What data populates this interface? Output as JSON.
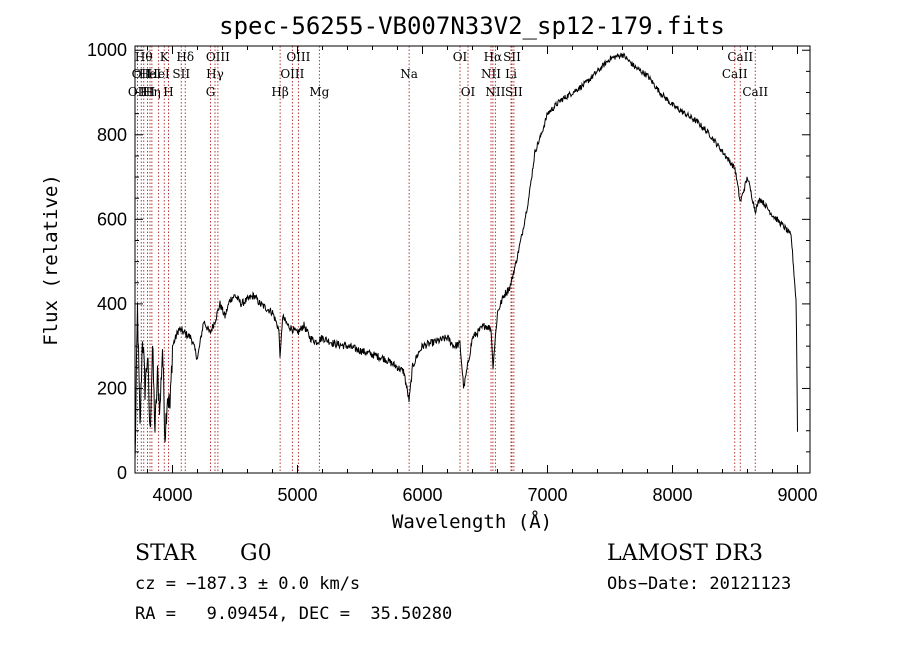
{
  "chart_data": {
    "type": "line",
    "title": "spec-56255-VB007N33V2_sp12-179.fits",
    "xlabel": "Wavelength (Å)",
    "ylabel": "Flux (relative)",
    "xlim": [
      3700,
      9100
    ],
    "ylim": [
      0,
      1010
    ],
    "xticks": [
      {
        "value": 4000,
        "label": "4000"
      },
      {
        "value": 5000,
        "label": "5000"
      },
      {
        "value": 6000,
        "label": "6000"
      },
      {
        "value": 7000,
        "label": "7000"
      },
      {
        "value": 8000,
        "label": "8000"
      },
      {
        "value": 9000,
        "label": "9000"
      }
    ],
    "yticks": [
      {
        "value": 0,
        "label": "0"
      },
      {
        "value": 200,
        "label": "200"
      },
      {
        "value": 400,
        "label": "400"
      },
      {
        "value": 600,
        "label": "600"
      },
      {
        "value": 800,
        "label": "800"
      },
      {
        "value": 1000,
        "label": "1000"
      }
    ],
    "series": [
      {
        "name": "flux",
        "x": [
          3700,
          3720,
          3740,
          3760,
          3780,
          3800,
          3820,
          3840,
          3860,
          3880,
          3900,
          3920,
          3940,
          3960,
          3980,
          4000,
          4050,
          4100,
          4150,
          4200,
          4250,
          4300,
          4340,
          4380,
          4420,
          4460,
          4500,
          4550,
          4600,
          4650,
          4700,
          4750,
          4800,
          4850,
          4862,
          4880,
          4920,
          4960,
          5000,
          5050,
          5100,
          5150,
          5200,
          5300,
          5400,
          5500,
          5600,
          5700,
          5800,
          5850,
          5893,
          5920,
          5960,
          6000,
          6100,
          6200,
          6250,
          6300,
          6330,
          6400,
          6500,
          6550,
          6563,
          6600,
          6650,
          6700,
          6750,
          6800,
          6850,
          6900,
          6950,
          7000,
          7100,
          7200,
          7300,
          7400,
          7500,
          7600,
          7700,
          7800,
          7900,
          8000,
          8100,
          8200,
          8300,
          8400,
          8500,
          8542,
          8600,
          8662,
          8700,
          8800,
          8900,
          8950,
          8990,
          9000
        ],
        "y": [
          20,
          390,
          100,
          330,
          200,
          280,
          90,
          300,
          100,
          230,
          150,
          300,
          90,
          190,
          150,
          300,
          340,
          330,
          320,
          270,
          360,
          330,
          360,
          400,
          370,
          410,
          420,
          400,
          410,
          420,
          400,
          390,
          380,
          340,
          270,
          370,
          350,
          340,
          330,
          350,
          320,
          310,
          320,
          305,
          300,
          290,
          280,
          270,
          250,
          240,
          170,
          250,
          280,
          300,
          310,
          320,
          300,
          305,
          200,
          320,
          350,
          340,
          250,
          380,
          420,
          440,
          500,
          570,
          650,
          760,
          800,
          850,
          880,
          900,
          920,
          950,
          980,
          990,
          960,
          940,
          900,
          870,
          850,
          830,
          800,
          760,
          720,
          640,
          700,
          620,
          650,
          610,
          580,
          560,
          400,
          100
        ]
      }
    ],
    "spectral_lines": [
      {
        "wavelength": 3720,
        "label": "OII",
        "row": 3
      },
      {
        "wavelength": 3750,
        "label": "OII",
        "row": 2
      },
      {
        "wavelength": 3770,
        "label": "Hθ",
        "row": 1
      },
      {
        "wavelength": 3800,
        "label": "HI",
        "row": 3
      },
      {
        "wavelength": 3820,
        "label": "HeI",
        "row": 2
      },
      {
        "wavelength": 3835,
        "label": "Hη",
        "row": 3
      },
      {
        "wavelength": 3889,
        "label": "HeI",
        "row": 2
      },
      {
        "wavelength": 3934,
        "label": "K",
        "row": 1
      },
      {
        "wavelength": 3968,
        "label": "H",
        "row": 3
      },
      {
        "wavelength": 4070,
        "label": "SII",
        "row": 2
      },
      {
        "wavelength": 4102,
        "label": "Hδ",
        "row": 1
      },
      {
        "wavelength": 4304,
        "label": "G",
        "row": 3
      },
      {
        "wavelength": 4340,
        "label": "Hγ",
        "row": 2
      },
      {
        "wavelength": 4363,
        "label": "OIII",
        "row": 1
      },
      {
        "wavelength": 4861,
        "label": "Hβ",
        "row": 3
      },
      {
        "wavelength": 4959,
        "label": "OIII",
        "row": 2
      },
      {
        "wavelength": 5007,
        "label": "OIII",
        "row": 1
      },
      {
        "wavelength": 5175,
        "label": "Mg",
        "row": 3
      },
      {
        "wavelength": 5893,
        "label": "Na",
        "row": 2
      },
      {
        "wavelength": 6300,
        "label": "OI",
        "row": 1
      },
      {
        "wavelength": 6364,
        "label": "OI",
        "row": 3
      },
      {
        "wavelength": 6548,
        "label": "NII",
        "row": 2
      },
      {
        "wavelength": 6563,
        "label": "Hα",
        "row": 1
      },
      {
        "wavelength": 6583,
        "label": "NII",
        "row": 3
      },
      {
        "wavelength": 6708,
        "label": "Li",
        "row": 2
      },
      {
        "wavelength": 6716,
        "label": "SII",
        "row": 1
      },
      {
        "wavelength": 6731,
        "label": "SII",
        "row": 3
      },
      {
        "wavelength": 8498,
        "label": "CaII",
        "row": 2
      },
      {
        "wavelength": 8542,
        "label": "CaII",
        "row": 1
      },
      {
        "wavelength": 8662,
        "label": "CaII",
        "row": 3
      }
    ]
  },
  "info": {
    "class_text": "STAR",
    "subclass_text": "G0",
    "survey": "LAMOST DR3",
    "redshift": "cz = −187.3 ± 0.0 km/s",
    "obs_date": "Obs−Date: 20121123",
    "coords": "RA =   9.09454, DEC =  35.50280"
  },
  "colors": {
    "spectrum": "#000000",
    "line_markers": "#b22222",
    "background": "#ffffff"
  }
}
